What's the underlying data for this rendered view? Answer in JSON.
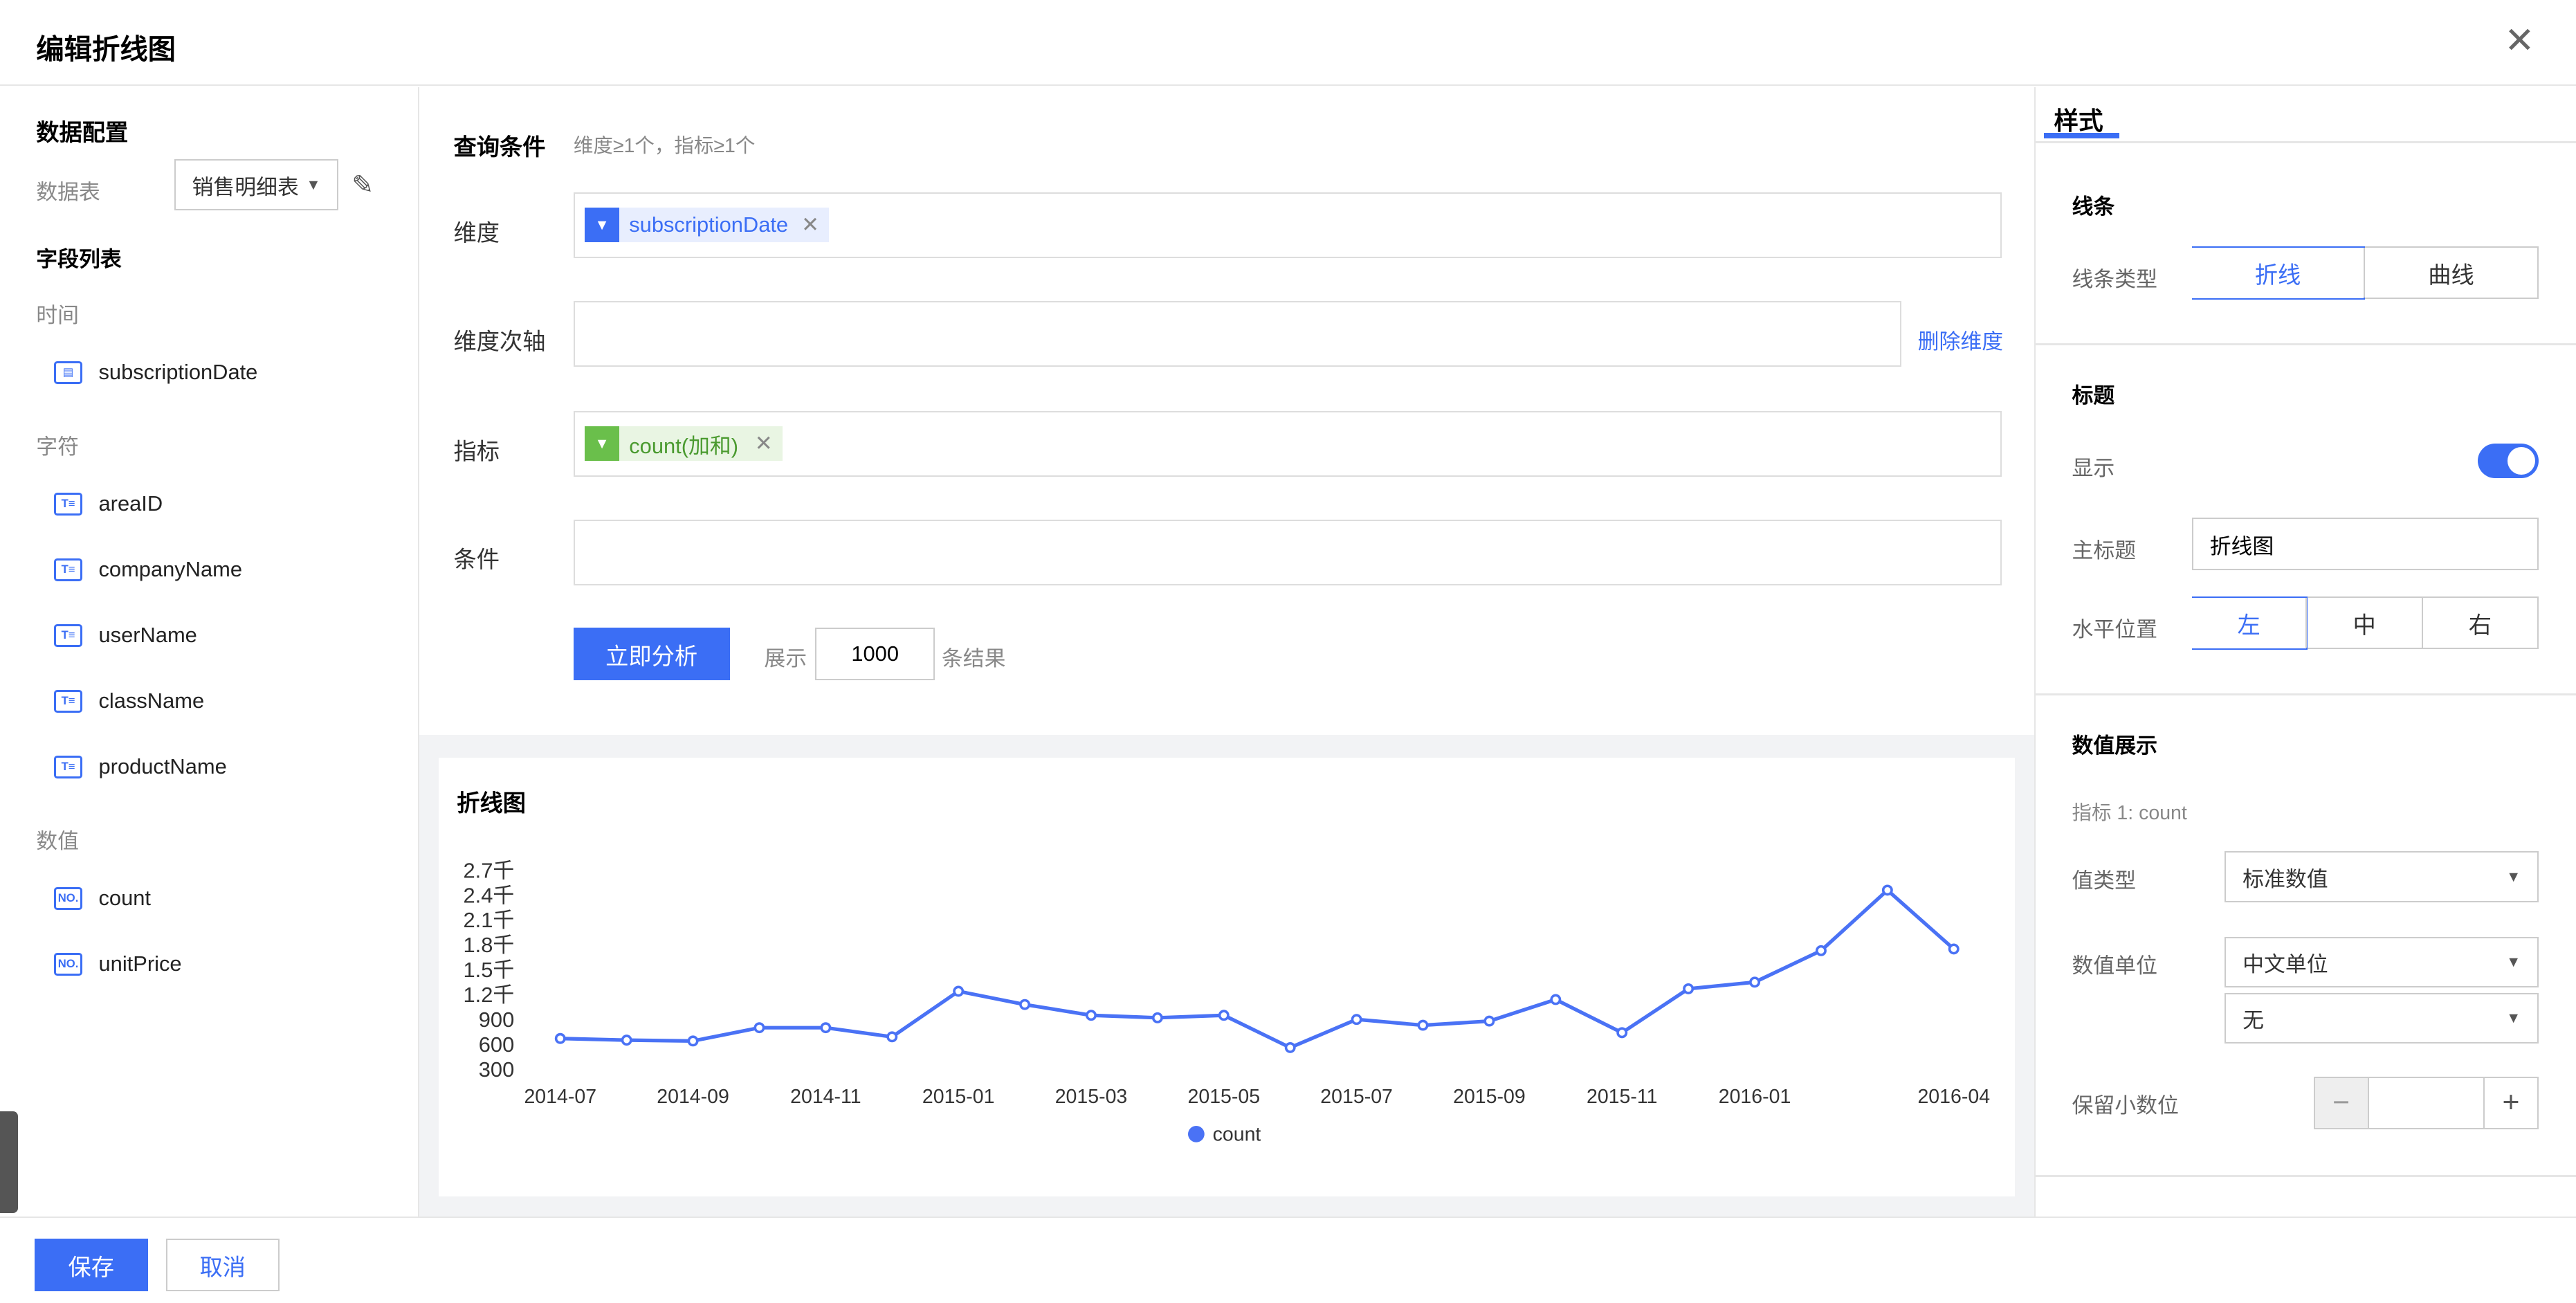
{
  "dialog": {
    "title": "编辑折线图",
    "close_icon": "close-icon"
  },
  "left": {
    "section_title": "数据配置",
    "table_label": "数据表",
    "table_value": "销售明细表",
    "field_list_title": "字段列表",
    "groups": [
      {
        "label": "时间",
        "fields": [
          {
            "name": "subscriptionDate",
            "icon": "calendar-icon"
          }
        ]
      },
      {
        "label": "字符",
        "fields": [
          {
            "name": "areaID",
            "icon": "text-field-icon"
          },
          {
            "name": "companyName",
            "icon": "text-field-icon"
          },
          {
            "name": "userName",
            "icon": "text-field-icon"
          },
          {
            "name": "className",
            "icon": "text-field-icon"
          },
          {
            "name": "productName",
            "icon": "text-field-icon"
          }
        ]
      },
      {
        "label": "数值",
        "fields": [
          {
            "name": "count",
            "icon": "number-field-icon"
          },
          {
            "name": "unitPrice",
            "icon": "number-field-icon"
          }
        ]
      }
    ]
  },
  "query": {
    "title": "查询条件",
    "hint": "维度≥1个，指标≥1个",
    "dimension_label": "维度",
    "dimension_tag": "subscriptionDate",
    "secondary_label": "维度次轴",
    "delete_dimension": "删除维度",
    "metric_label": "指标",
    "metric_tag": "count(加和)",
    "condition_label": "条件",
    "analyze_button": "立即分析",
    "show_label": "展示",
    "limit_value": "1000",
    "result_suffix": "条结果"
  },
  "chart_data": {
    "type": "line",
    "title": "折线图",
    "x": [
      "2014-07",
      "2014-08",
      "2014-09",
      "2014-10",
      "2014-11",
      "2014-12",
      "2015-01",
      "2015-02",
      "2015-03",
      "2015-04",
      "2015-05",
      "2015-06",
      "2015-07",
      "2015-08",
      "2015-09",
      "2015-10",
      "2015-11",
      "2015-12",
      "2016-01",
      "2016-02",
      "2016-03",
      "2016-04"
    ],
    "x_tick_labels": [
      "2014-07",
      "2014-09",
      "2014-11",
      "2015-01",
      "2015-03",
      "2015-05",
      "2015-07",
      "2015-09",
      "2015-11",
      "2016-01",
      "2016-04"
    ],
    "y_tick_labels": [
      "300",
      "600",
      "900",
      "1.2千",
      "1.5千",
      "1.8千",
      "2.1千",
      "2.4千",
      "2.7千"
    ],
    "ylim": [
      300,
      2700
    ],
    "series": [
      {
        "name": "count",
        "color": "#4a72f5",
        "values": [
          680,
          660,
          650,
          810,
          810,
          700,
          1250,
          1090,
          960,
          930,
          960,
          570,
          910,
          840,
          890,
          1150,
          750,
          1280,
          1360,
          1740,
          2470,
          1760
        ]
      }
    ],
    "legend": "bottom",
    "grid": false
  },
  "style": {
    "tab": "样式",
    "line_section": "线条",
    "line_type_label": "线条类型",
    "line_types": [
      "折线",
      "曲线"
    ],
    "line_type_selected": 0,
    "title_section": "标题",
    "show_label": "显示",
    "show_on": true,
    "main_title_label": "主标题",
    "main_title_value": "折线图",
    "align_label": "水平位置",
    "aligns": [
      "左",
      "中",
      "右"
    ],
    "align_selected": 0,
    "value_section": "数值展示",
    "metric_caption": "指标 1: count",
    "value_type_label": "值类型",
    "value_type": "标准数值",
    "unit_label": "数值单位",
    "unit": "中文单位",
    "unit_sub": "无",
    "decimal_label": "保留小数位",
    "decimal_value": "",
    "minus": "−",
    "plus": "+"
  },
  "footer": {
    "save": "保存",
    "cancel": "取消"
  },
  "colors": {
    "accent": "#3b6ef5",
    "metric_green": "#6abf4b"
  }
}
